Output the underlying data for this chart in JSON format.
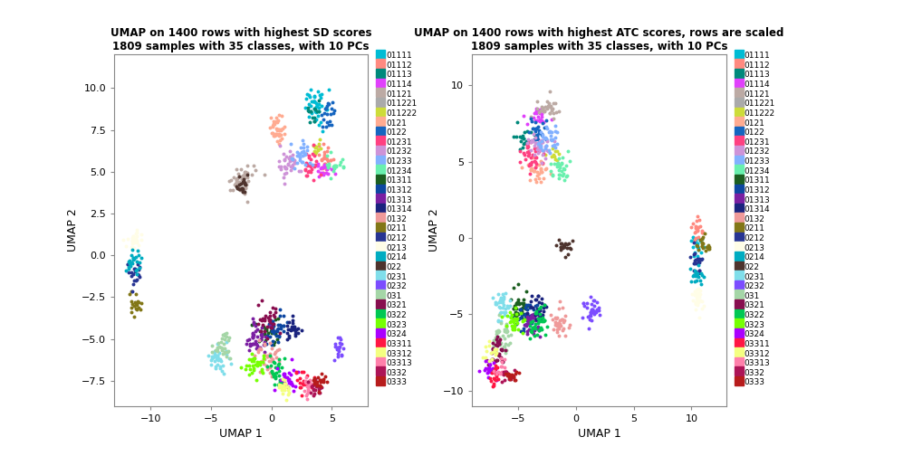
{
  "title1": "UMAP on 1400 rows with highest SD scores\n1809 samples with 35 classes, with 10 PCs",
  "title2": "UMAP on 1400 rows with highest ATC scores, rows are scaled\n1809 samples with 35 classes, with 10 PCs",
  "xlabel": "UMAP 1",
  "ylabel": "UMAP 2",
  "classes": [
    "01111",
    "01112",
    "01113",
    "01114",
    "01121",
    "011221",
    "011222",
    "0121",
    "0122",
    "01231",
    "01232",
    "01233",
    "01234",
    "01311",
    "01312",
    "01313",
    "01314",
    "0132",
    "0211",
    "0212",
    "0213",
    "0214",
    "022",
    "0231",
    "0232",
    "031",
    "0321",
    "0322",
    "0323",
    "0324",
    "03311",
    "03312",
    "03313",
    "0332",
    "0333"
  ],
  "colors": [
    "#00BCD4",
    "#F48FB1",
    "#00897B",
    "#E040FB",
    "#BCAAA4",
    "#AAAAAA",
    "#C6E02A",
    "#FFAB91",
    "#1565C0",
    "#FF4081",
    "#CE93D8",
    "#82B1FF",
    "#69F0AE",
    "#1B5E20",
    "#0D47A1",
    "#7B1FA2",
    "#1A237E",
    "#EF9A9A",
    "#9E9D24",
    "#1A237E",
    "#FFFDE7",
    "#00ACC1",
    "#4E342E",
    "#80DEEA",
    "#7C4DFF",
    "#69FFCE",
    "#880E4F",
    "#00C853",
    "#76FF03",
    "#AA00FF",
    "#FF1744",
    "#F4FF81",
    "#FF80AB",
    "#AD1457",
    "#B71C1C"
  ]
}
